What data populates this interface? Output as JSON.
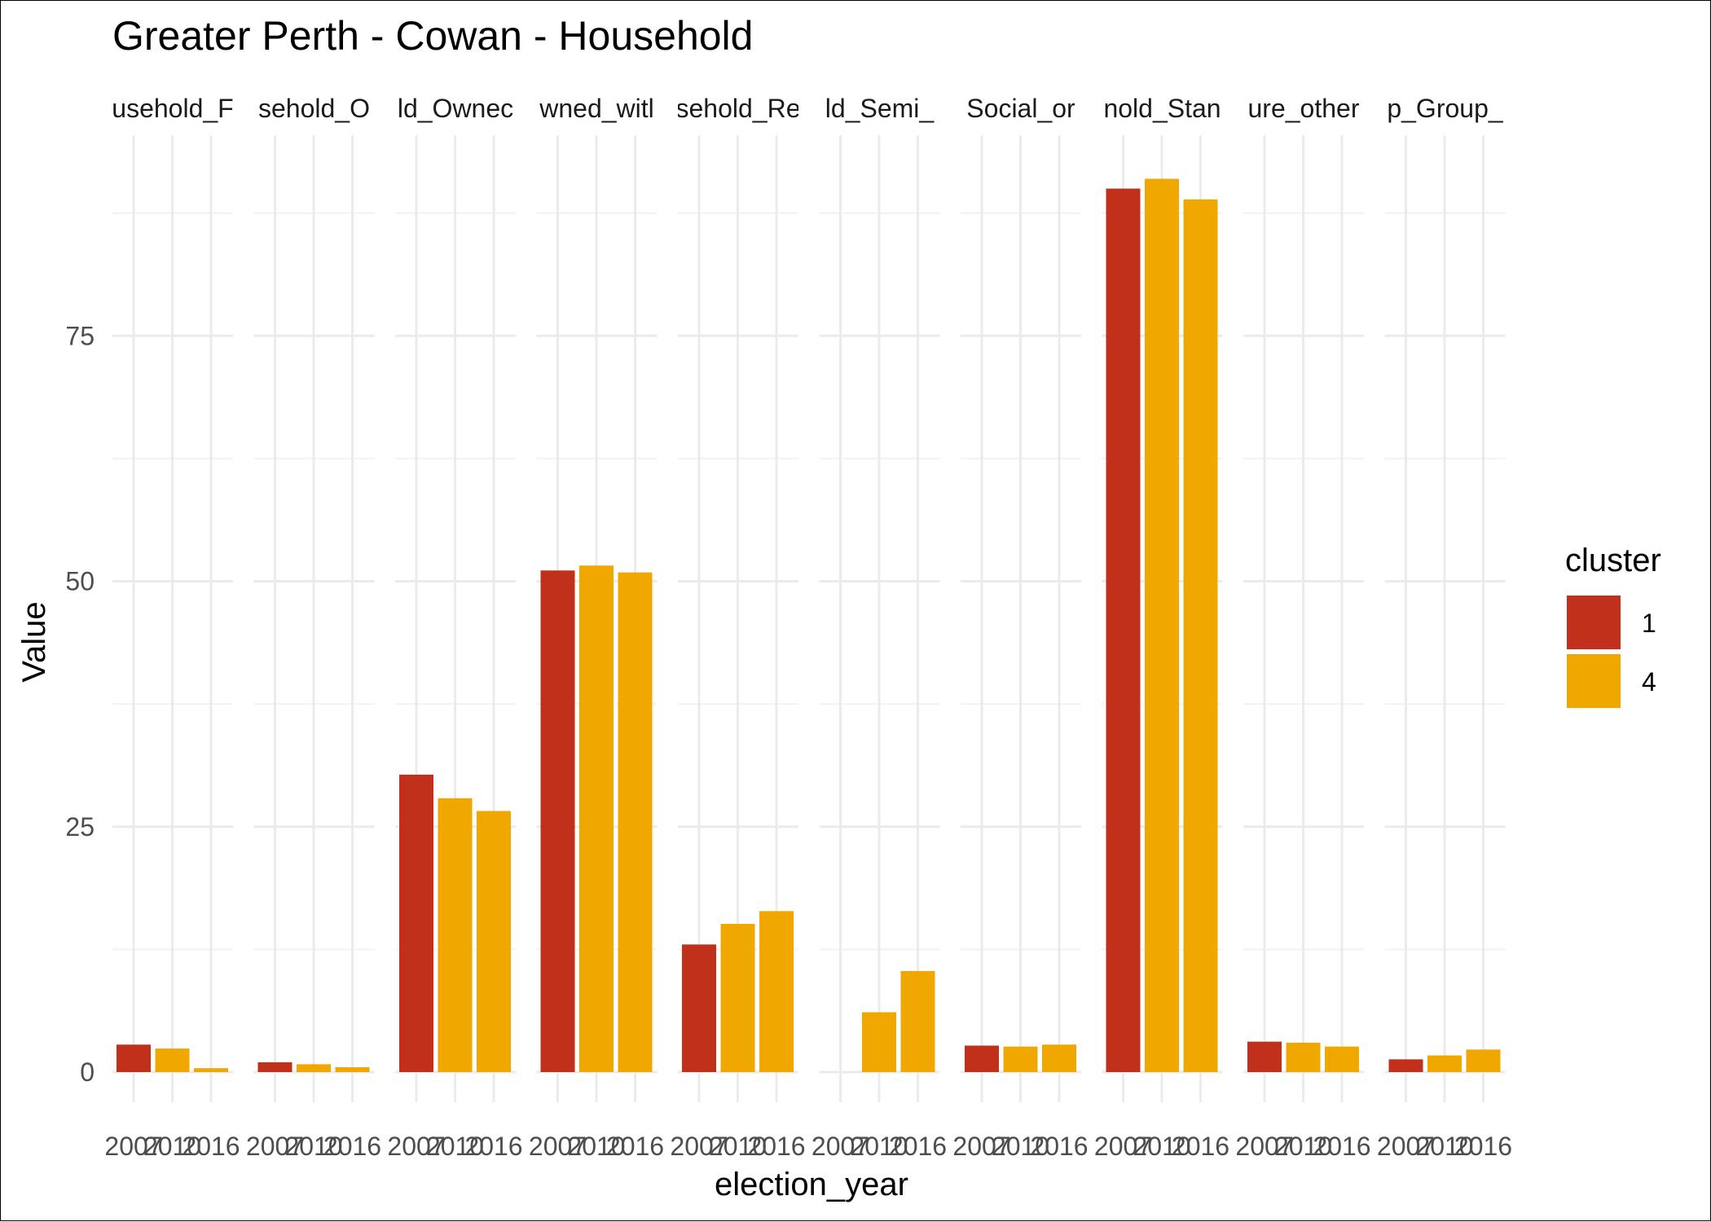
{
  "chart_data": {
    "type": "bar",
    "title": "Greater Perth - Cowan - Household",
    "xlabel": "election_year",
    "ylabel": "Value",
    "ylim": [
      0,
      95
    ],
    "yticks": [
      0,
      25,
      50,
      75
    ],
    "grid": true,
    "legend": {
      "title": "cluster",
      "placement": "right",
      "entries": [
        {
          "label": "1",
          "color": "#C0301A"
        },
        {
          "label": "4",
          "color": "#F0A800"
        }
      ]
    },
    "categories": [
      "2007",
      "2010",
      "2016"
    ],
    "panels": [
      {
        "label": "usehold_F",
        "values": [
          2.8,
          2.4,
          0.4
        ],
        "clusters": [
          "1",
          "4",
          "4"
        ]
      },
      {
        "label": "sehold_O",
        "values": [
          1.0,
          0.8,
          0.5
        ],
        "clusters": [
          "1",
          "4",
          "4"
        ]
      },
      {
        "label": "ld_Ownec",
        "values": [
          30.3,
          27.9,
          26.6
        ],
        "clusters": [
          "1",
          "4",
          "4"
        ]
      },
      {
        "label": "wned_witl",
        "values": [
          51.1,
          51.6,
          50.9
        ],
        "clusters": [
          "1",
          "4",
          "4"
        ]
      },
      {
        "label": "sehold_Re",
        "values": [
          13.0,
          15.1,
          16.4
        ],
        "clusters": [
          "1",
          "4",
          "4"
        ]
      },
      {
        "label": "ld_Semi_",
        "values": [
          null,
          6.1,
          10.3
        ],
        "clusters": [
          "1",
          "4",
          "4"
        ]
      },
      {
        "label": "Social_or",
        "values": [
          2.7,
          2.6,
          2.8
        ],
        "clusters": [
          "1",
          "4",
          "4"
        ]
      },
      {
        "label": "nold_Stan",
        "values": [
          90.0,
          91.0,
          88.9
        ],
        "clusters": [
          "1",
          "4",
          "4"
        ]
      },
      {
        "label": "ure_other",
        "values": [
          3.1,
          3.0,
          2.6
        ],
        "clusters": [
          "1",
          "4",
          "4"
        ]
      },
      {
        "label": "p_Group_",
        "values": [
          1.3,
          1.7,
          2.3
        ],
        "clusters": [
          "1",
          "4",
          "4"
        ]
      }
    ]
  }
}
